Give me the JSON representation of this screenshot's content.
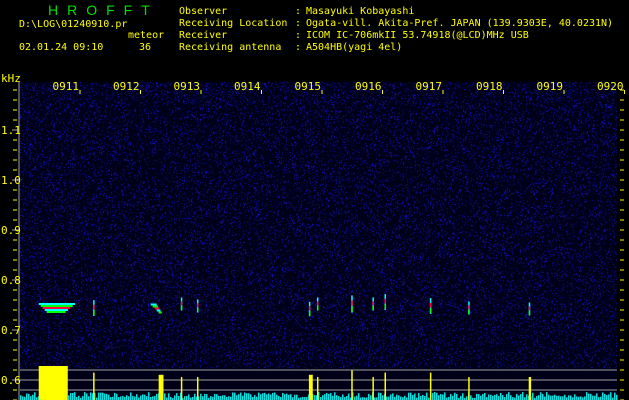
{
  "header": {
    "title": "HROFFT",
    "log_file": "D:\\LOG\\01240910.pr",
    "meteor_label": "meteor",
    "date_time": "02.01.24 09:10",
    "meteor_count": "36",
    "info": [
      {
        "label": "Observer",
        "value": "Masayuki Kobayashi"
      },
      {
        "label": "Receiving Location",
        "value": "Ogata-vill. Akita-Pref. JAPAN (139.9303E, 40.0231N)"
      },
      {
        "label": "Receiver",
        "value": "ICOM IC-706mkII 53.74918(@LCD)MHz USB"
      },
      {
        "label": "Receiving antenna",
        "value": "A504HB(yagi 4el)"
      }
    ]
  },
  "chart_data": {
    "type": "heatmap",
    "ylabel": "kHz",
    "x_tick_labels": [
      "0911",
      "0912",
      "0913",
      "0914",
      "0915",
      "0916",
      "0917",
      "0918",
      "0919",
      "0920"
    ],
    "x_range": [
      "09:10",
      "09:20"
    ],
    "y_tick_labels": [
      "1.1",
      "1.0",
      "0.9",
      "0.8",
      "0.7",
      "0.6"
    ],
    "y_range_khz": [
      0.56,
      1.196
    ],
    "echoes": [
      {
        "time": "09:10:27",
        "khz": 0.746,
        "strength": 1.0,
        "length_min": 0.6
      },
      {
        "time": "09:11:13",
        "khz": 0.744,
        "strength": 0.7,
        "length_min": 0.02
      },
      {
        "time": "09:12:18",
        "khz": 0.745,
        "strength": 0.6,
        "length_min": 0.1
      },
      {
        "time": "09:12:40",
        "khz": 0.752,
        "strength": 0.5,
        "length_min": 0.02
      },
      {
        "time": "09:12:56",
        "khz": 0.748,
        "strength": 0.5,
        "length_min": 0.02
      },
      {
        "time": "09:14:47",
        "khz": 0.742,
        "strength": 0.6,
        "length_min": 0.08
      },
      {
        "time": "09:14:55",
        "khz": 0.752,
        "strength": 0.5,
        "length_min": 0.02
      },
      {
        "time": "09:15:29",
        "khz": 0.752,
        "strength": 0.8,
        "length_min": 0.02
      },
      {
        "time": "09:15:50",
        "khz": 0.752,
        "strength": 0.5,
        "length_min": 0.02
      },
      {
        "time": "09:16:02",
        "khz": 0.756,
        "strength": 0.7,
        "length_min": 0.02
      },
      {
        "time": "09:16:47",
        "khz": 0.748,
        "strength": 0.7,
        "length_min": 0.02
      },
      {
        "time": "09:17:25",
        "khz": 0.744,
        "strength": 0.5,
        "length_min": 0.02
      },
      {
        "time": "09:18:25",
        "khz": 0.742,
        "strength": 0.5,
        "length_min": 0.05
      }
    ],
    "reference_lines_khz": [
      0.62,
      0.6,
      0.58
    ],
    "colors": {
      "noise": "#1010a0",
      "echo_low": "#00ffff",
      "echo_mid": "#00ff00",
      "echo_high": "#ff0040",
      "axis": "#ffff00",
      "histogram_signal": "#ffff00",
      "histogram_noise": "#00e0e0",
      "reference_line": "#a0a0a0"
    }
  }
}
